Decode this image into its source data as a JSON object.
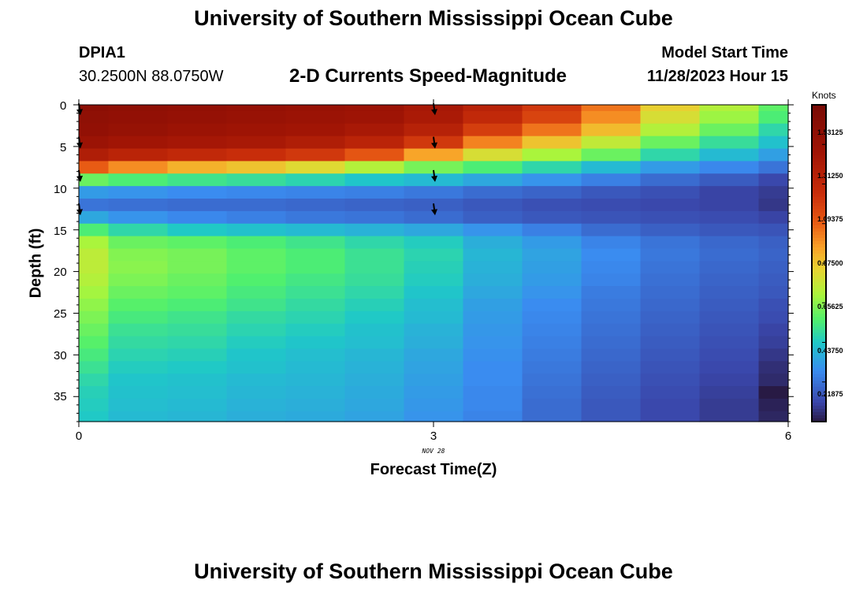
{
  "header": {
    "title": "University of Southern Mississippi Ocean Cube",
    "station": "DPIA1",
    "coords": "30.2500N  88.0750W",
    "chart_title": "2-D Currents Speed-Magnitude",
    "model_label": "Model Start Time",
    "model_time": "11/28/2023 Hour 15",
    "bottom_title": "University of Southern Mississippi Ocean Cube"
  },
  "colorbar": {
    "unit": "Knots",
    "labels": [
      "1.53125",
      "1.31250",
      "1.09375",
      "0.87500",
      "0.65625",
      "0.43750",
      "0.21875"
    ],
    "range": [
      0,
      1.75
    ]
  },
  "chart_data": {
    "type": "heatmap",
    "title": "2-D Currents Speed-Magnitude",
    "xlabel": "Forecast Time(Z)",
    "ylabel": "Depth (ft)",
    "date_label": "NOV 28",
    "x_ticks": [
      "0",
      "3",
      "6"
    ],
    "y_ticks": [
      "0",
      "5",
      "10",
      "15",
      "20",
      "25",
      "30",
      "35"
    ],
    "xlim": [
      0,
      6
    ],
    "ylim": [
      0,
      38
    ],
    "units": "Knots",
    "time_hours": [
      0,
      0.5,
      1,
      1.5,
      2,
      2.5,
      3,
      3.5,
      4,
      4.5,
      5,
      5.5,
      6
    ],
    "depths_ft": [
      0,
      1.5,
      3,
      4.5,
      6,
      7.5,
      9,
      10.5,
      12,
      13.5,
      15,
      16.5,
      18,
      19.5,
      21,
      22.5,
      24,
      25.5,
      27,
      28.5,
      30,
      31.5,
      33,
      34.5,
      36,
      37.5
    ],
    "speed_knots": [
      [
        1.62,
        1.6,
        1.58,
        1.56,
        1.54,
        1.52,
        1.45,
        1.35,
        1.22,
        1.05,
        0.85,
        0.72,
        0.58
      ],
      [
        1.6,
        1.58,
        1.56,
        1.54,
        1.52,
        1.5,
        1.43,
        1.3,
        1.18,
        1.0,
        0.8,
        0.68,
        0.55
      ],
      [
        1.58,
        1.55,
        1.52,
        1.5,
        1.48,
        1.44,
        1.36,
        1.2,
        1.05,
        0.9,
        0.72,
        0.6,
        0.48
      ],
      [
        1.52,
        1.48,
        1.46,
        1.44,
        1.4,
        1.34,
        1.22,
        1.02,
        0.88,
        0.75,
        0.6,
        0.5,
        0.42
      ],
      [
        1.4,
        1.34,
        1.3,
        1.26,
        1.22,
        1.12,
        0.95,
        0.8,
        0.7,
        0.6,
        0.48,
        0.4,
        0.33
      ],
      [
        1.1,
        1.0,
        0.92,
        0.88,
        0.82,
        0.72,
        0.62,
        0.55,
        0.48,
        0.4,
        0.32,
        0.27,
        0.22
      ],
      [
        0.6,
        0.55,
        0.52,
        0.5,
        0.47,
        0.43,
        0.4,
        0.35,
        0.3,
        0.25,
        0.2,
        0.16,
        0.11
      ],
      [
        0.32,
        0.3,
        0.28,
        0.27,
        0.26,
        0.25,
        0.23,
        0.2,
        0.18,
        0.15,
        0.13,
        0.1,
        0.08
      ],
      [
        0.22,
        0.21,
        0.2,
        0.2,
        0.19,
        0.18,
        0.17,
        0.15,
        0.13,
        0.12,
        0.11,
        0.1,
        0.07
      ],
      [
        0.35,
        0.3,
        0.27,
        0.25,
        0.23,
        0.22,
        0.2,
        0.17,
        0.15,
        0.14,
        0.13,
        0.12,
        0.1
      ],
      [
        0.55,
        0.48,
        0.44,
        0.42,
        0.4,
        0.38,
        0.35,
        0.3,
        0.25,
        0.2,
        0.17,
        0.15,
        0.14
      ],
      [
        0.7,
        0.6,
        0.58,
        0.55,
        0.52,
        0.48,
        0.45,
        0.37,
        0.32,
        0.26,
        0.22,
        0.19,
        0.17
      ],
      [
        0.74,
        0.64,
        0.62,
        0.58,
        0.55,
        0.51,
        0.47,
        0.39,
        0.34,
        0.28,
        0.23,
        0.2,
        0.18
      ],
      [
        0.74,
        0.65,
        0.62,
        0.58,
        0.55,
        0.51,
        0.46,
        0.38,
        0.33,
        0.27,
        0.22,
        0.19,
        0.17
      ],
      [
        0.72,
        0.63,
        0.6,
        0.56,
        0.53,
        0.5,
        0.45,
        0.37,
        0.32,
        0.26,
        0.21,
        0.18,
        0.16
      ],
      [
        0.69,
        0.6,
        0.58,
        0.54,
        0.51,
        0.48,
        0.43,
        0.35,
        0.3,
        0.24,
        0.2,
        0.17,
        0.15
      ],
      [
        0.66,
        0.57,
        0.55,
        0.52,
        0.49,
        0.46,
        0.41,
        0.33,
        0.28,
        0.23,
        0.19,
        0.16,
        0.13
      ],
      [
        0.63,
        0.54,
        0.52,
        0.49,
        0.47,
        0.44,
        0.4,
        0.32,
        0.27,
        0.22,
        0.18,
        0.15,
        0.12
      ],
      [
        0.6,
        0.51,
        0.5,
        0.47,
        0.45,
        0.42,
        0.38,
        0.31,
        0.26,
        0.21,
        0.17,
        0.14,
        0.1
      ],
      [
        0.57,
        0.49,
        0.48,
        0.45,
        0.43,
        0.41,
        0.37,
        0.3,
        0.25,
        0.2,
        0.16,
        0.13,
        0.09
      ],
      [
        0.54,
        0.47,
        0.46,
        0.43,
        0.41,
        0.39,
        0.35,
        0.29,
        0.24,
        0.19,
        0.15,
        0.12,
        0.07
      ],
      [
        0.51,
        0.45,
        0.44,
        0.42,
        0.4,
        0.38,
        0.34,
        0.28,
        0.23,
        0.18,
        0.14,
        0.11,
        0.05
      ],
      [
        0.48,
        0.43,
        0.42,
        0.4,
        0.39,
        0.37,
        0.33,
        0.28,
        0.22,
        0.17,
        0.13,
        0.1,
        0.04
      ],
      [
        0.46,
        0.42,
        0.41,
        0.39,
        0.38,
        0.36,
        0.32,
        0.27,
        0.21,
        0.16,
        0.12,
        0.09,
        0.0
      ],
      [
        0.45,
        0.41,
        0.4,
        0.38,
        0.37,
        0.35,
        0.31,
        0.27,
        0.2,
        0.15,
        0.11,
        0.08,
        0.02
      ],
      [
        0.44,
        0.4,
        0.39,
        0.37,
        0.36,
        0.34,
        0.3,
        0.26,
        0.2,
        0.15,
        0.11,
        0.08,
        0.03
      ]
    ],
    "vectors": [
      {
        "time": 0,
        "depth": 0.5
      },
      {
        "time": 0,
        "depth": 4.5
      },
      {
        "time": 0,
        "depth": 8.5
      },
      {
        "time": 0,
        "depth": 12.5
      },
      {
        "time": 3,
        "depth": 0.5
      },
      {
        "time": 3,
        "depth": 4.5
      },
      {
        "time": 3,
        "depth": 8.5
      },
      {
        "time": 3,
        "depth": 12.5
      }
    ]
  }
}
